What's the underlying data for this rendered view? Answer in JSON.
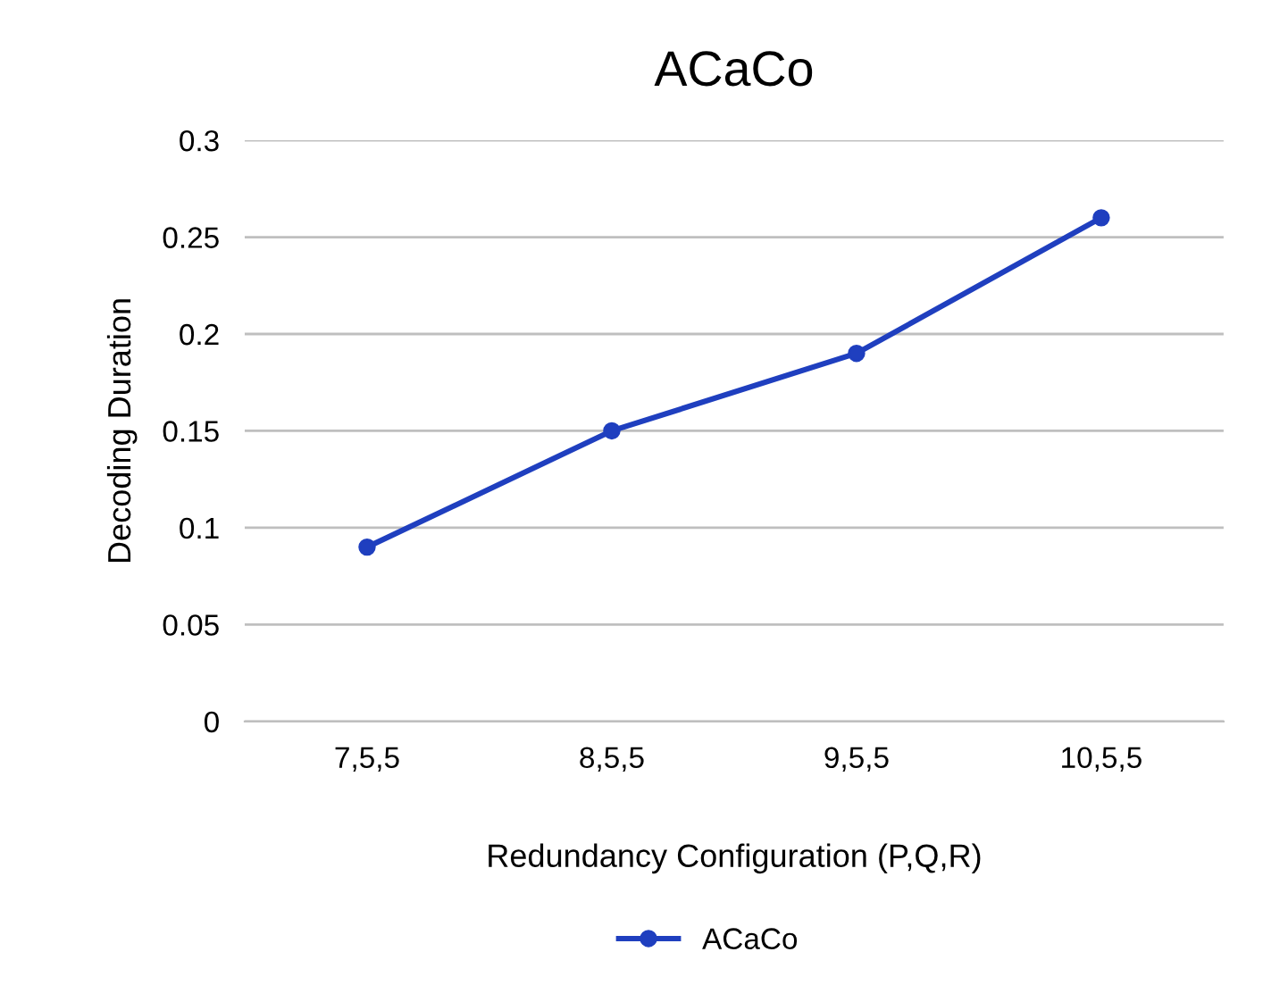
{
  "chart_data": {
    "type": "line",
    "title": "ACaCo",
    "xlabel": "Redundancy Configuration (P,Q,R)",
    "ylabel": "Decoding Duration",
    "categories": [
      "7,5,5",
      "8,5,5",
      "9,5,5",
      "10,5,5"
    ],
    "series": [
      {
        "name": "ACaCo",
        "color": "#1f3fbf",
        "values": [
          0.09,
          0.15,
          0.19,
          0.26
        ]
      }
    ],
    "ylim": [
      0,
      0.3
    ],
    "yticks": [
      0,
      0.05,
      0.1,
      0.15,
      0.2,
      0.25,
      0.3
    ],
    "grid": "y",
    "legend": "bottom",
    "marker": "circle",
    "line_style": "solid"
  }
}
